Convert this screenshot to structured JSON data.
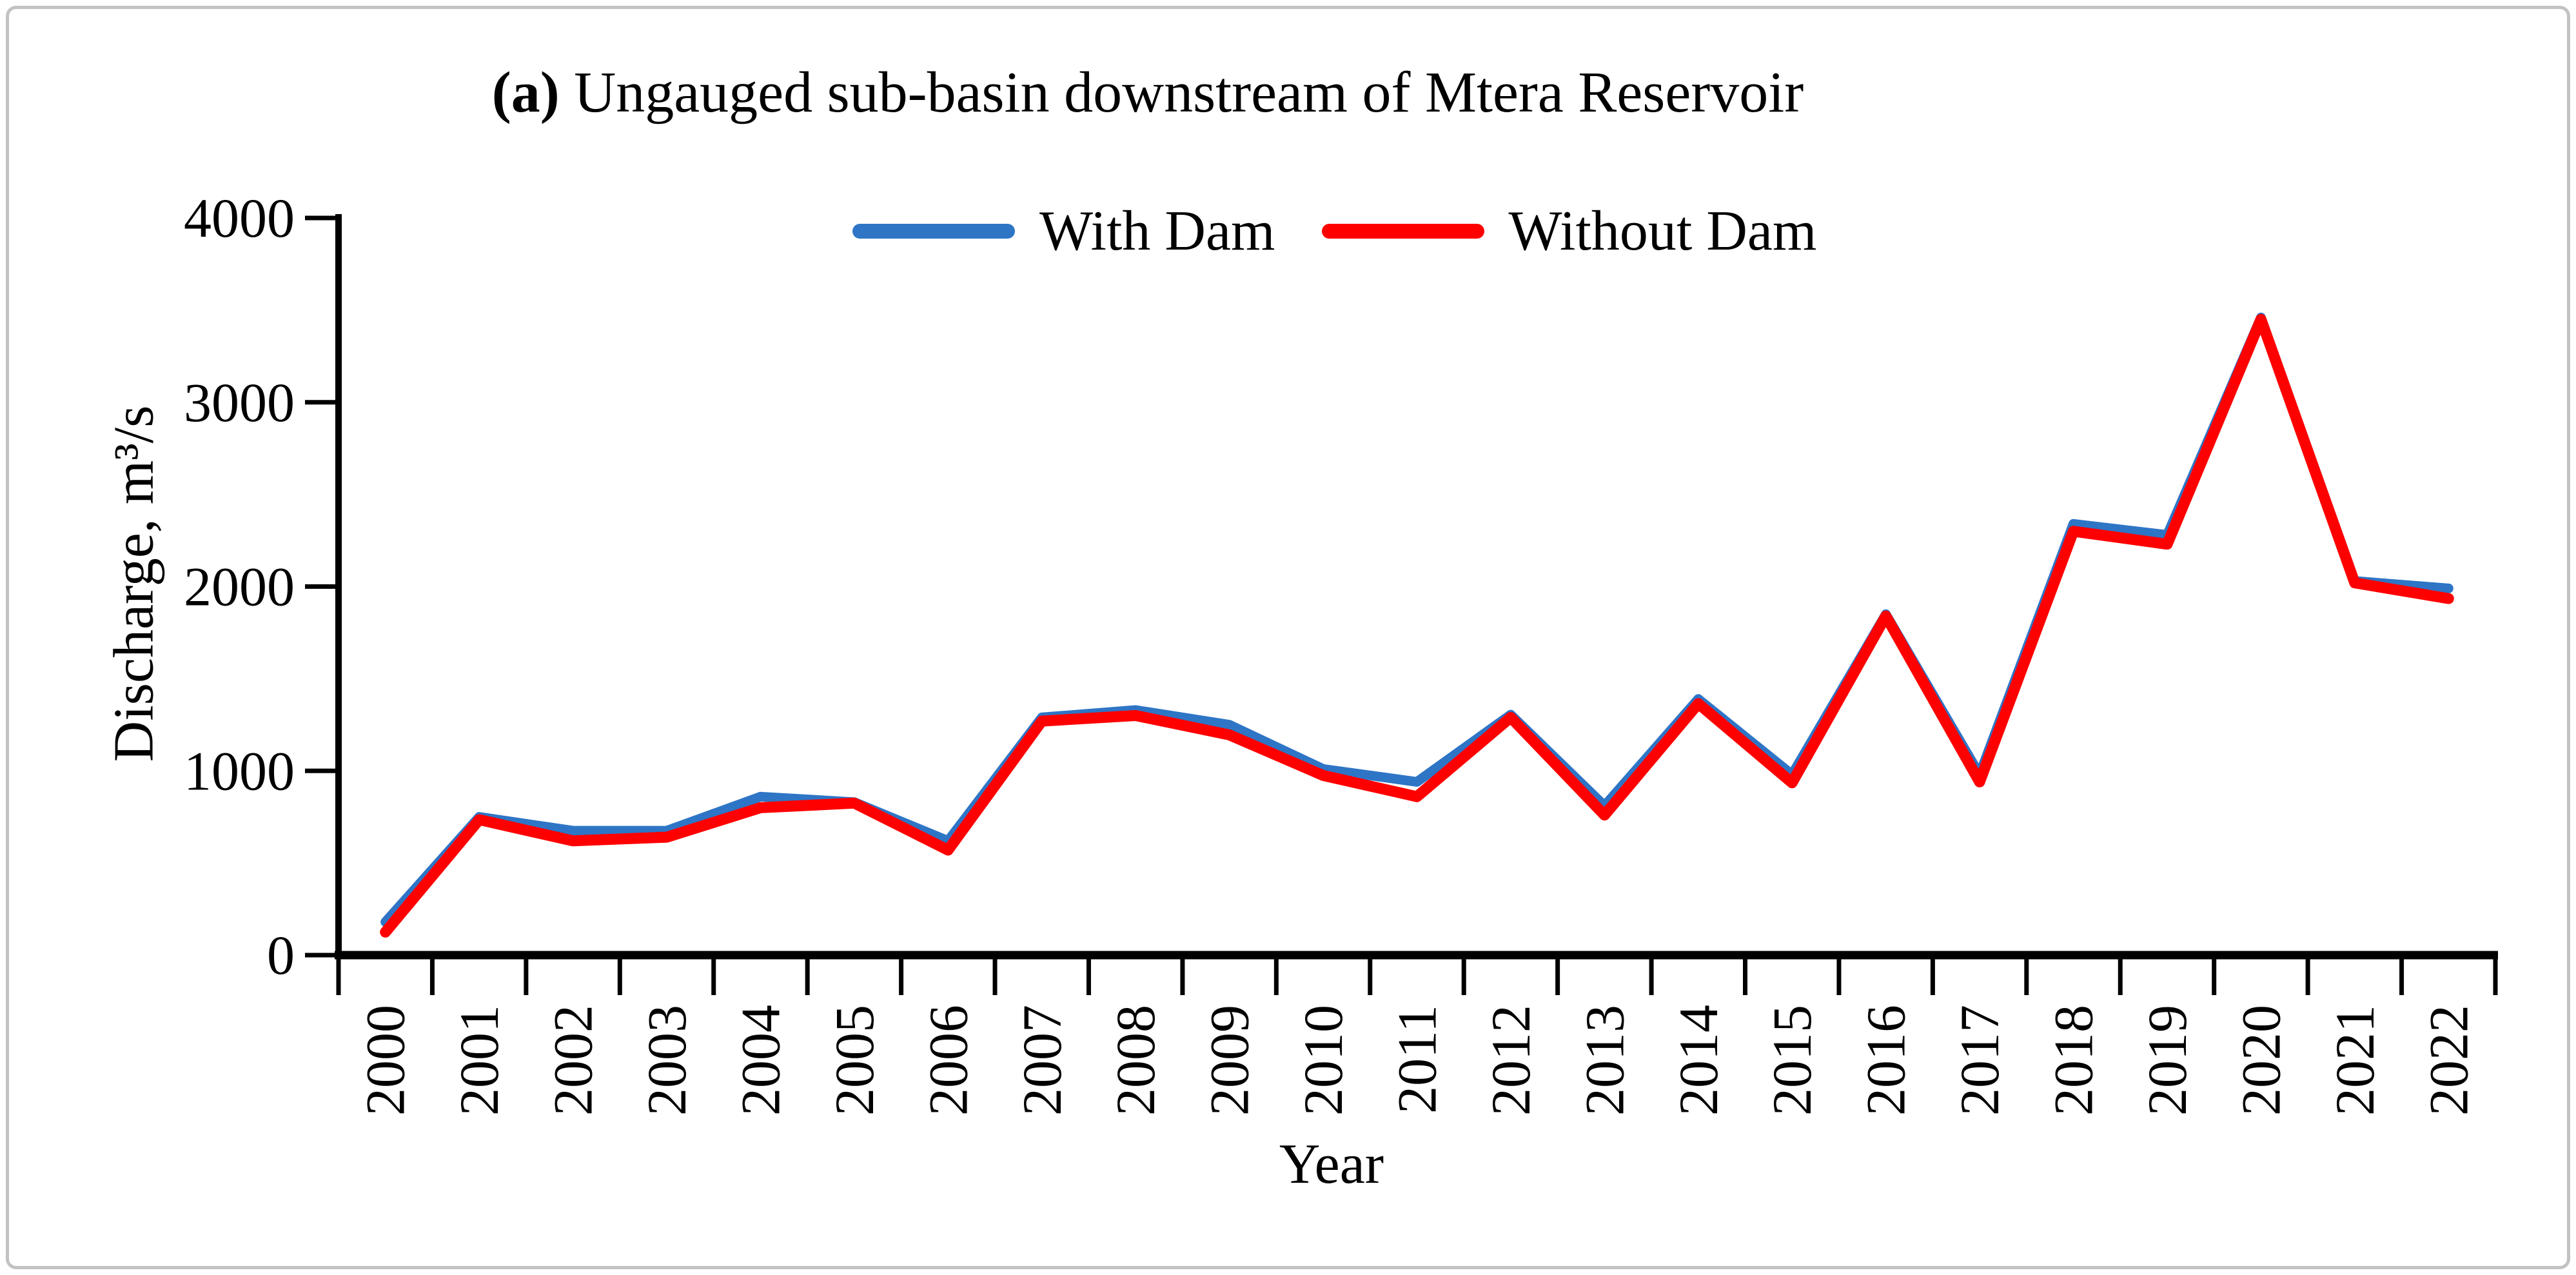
{
  "figure": {
    "title": {
      "prefix": "(a)",
      "rest": " Ungauged sub-basin downstream of Mtera Reservoir"
    },
    "border_color": "#c2c2c2",
    "background": "#ffffff"
  },
  "chart_data": {
    "type": "line",
    "title": "(a) Ungauged sub-basin downstream of Mtera Reservoir",
    "xlabel": "Year",
    "ylabel": "Discharge, m³/s",
    "ylim": [
      0,
      4000
    ],
    "yticks": [
      0,
      1000,
      2000,
      3000,
      4000
    ],
    "grid": false,
    "legend_position": "top-center",
    "x": [
      2000,
      2001,
      2002,
      2003,
      2004,
      2005,
      2006,
      2007,
      2008,
      2009,
      2010,
      2011,
      2012,
      2013,
      2014,
      2015,
      2016,
      2017,
      2018,
      2019,
      2020,
      2021,
      2022
    ],
    "series": [
      {
        "name": "With Dam",
        "color": "#2E75C6",
        "values": [
          180,
          750,
          675,
          675,
          860,
          830,
          620,
          1290,
          1330,
          1250,
          1010,
          940,
          1305,
          810,
          1390,
          980,
          1850,
          980,
          2340,
          2280,
          3460,
          2030,
          1990
        ]
      },
      {
        "name": "Without Dam",
        "color": "#FF0000",
        "values": [
          125,
          735,
          620,
          640,
          800,
          825,
          570,
          1270,
          1300,
          1195,
          975,
          860,
          1290,
          760,
          1365,
          935,
          1840,
          940,
          2300,
          2230,
          3450,
          2020,
          1935
        ]
      }
    ]
  }
}
